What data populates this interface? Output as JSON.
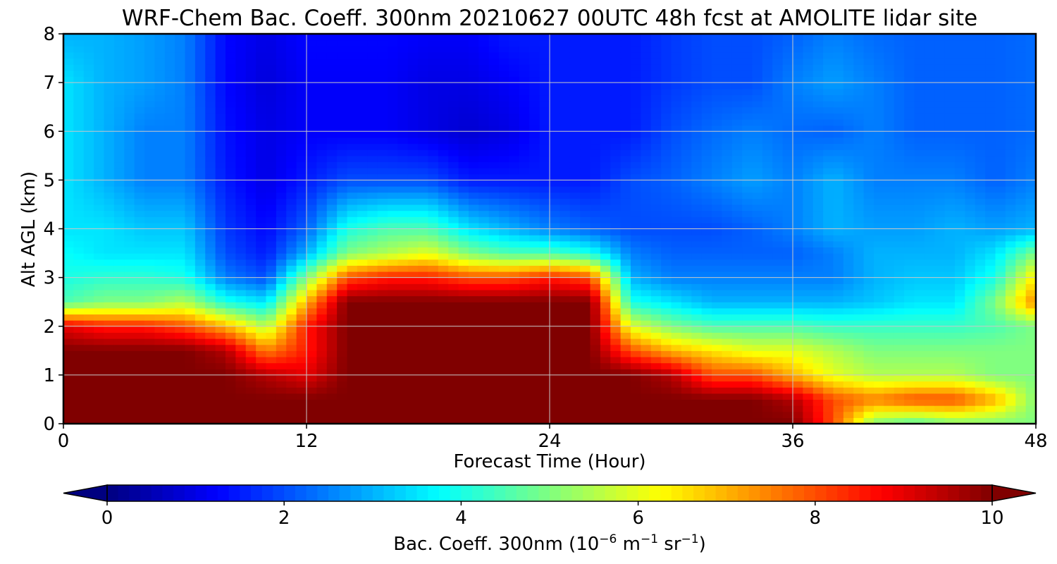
{
  "chart_data": {
    "type": "heatmap",
    "title": "WRF-Chem Bac. Coeff. 300nm  20210627 00UTC 48h fcst at AMOLITE lidar site",
    "xlabel": "Forecast Time (Hour)",
    "ylabel": "Alt AGL (km)",
    "xlim": [
      0,
      48
    ],
    "ylim": [
      0,
      8
    ],
    "xticks": [
      0,
      12,
      24,
      36,
      48
    ],
    "yticks": [
      0,
      1,
      2,
      3,
      4,
      5,
      6,
      7,
      8
    ],
    "grid": true,
    "colorbar": {
      "label_prefix": "Bac. Coeff. 300nm  (10",
      "label_exp1": "−6",
      "label_mid": " m",
      "label_exp2": "−1",
      "label_mid2": " sr",
      "label_exp3": "−1",
      "label_suffix": ")",
      "range": [
        0,
        10
      ],
      "ticks": [
        0,
        2,
        4,
        6,
        8,
        10
      ],
      "extend": "both",
      "colormap": "jet"
    },
    "x": [
      0,
      2,
      4,
      6,
      8,
      10,
      12,
      14,
      16,
      18,
      20,
      22,
      24,
      26,
      28,
      30,
      32,
      34,
      36,
      38,
      40,
      42,
      44,
      46,
      48
    ],
    "y": [
      0,
      0.5,
      1,
      1.5,
      2,
      2.5,
      3,
      3.5,
      4,
      5,
      6,
      7,
      8
    ],
    "z": [
      [
        10,
        10,
        10,
        10,
        10,
        10,
        10,
        10,
        10,
        10,
        10,
        10,
        10,
        10,
        10,
        10,
        10,
        10,
        10,
        8,
        5,
        4.5,
        5,
        5,
        5
      ],
      [
        10,
        10,
        10,
        10,
        10,
        10,
        10,
        10,
        10,
        10,
        10,
        10,
        10,
        10,
        10,
        10,
        10,
        10,
        9.5,
        8,
        7.5,
        8,
        8,
        7,
        5
      ],
      [
        10,
        10,
        10,
        10,
        10,
        9.5,
        9,
        10,
        10,
        10,
        10,
        10,
        10,
        10,
        10,
        9.5,
        8,
        8,
        7,
        6,
        5.5,
        5.5,
        5.5,
        5,
        5
      ],
      [
        10,
        10,
        10,
        10,
        9.5,
        7.5,
        8.5,
        10,
        10,
        10,
        10,
        10,
        10,
        10,
        8,
        7,
        6.5,
        6,
        6,
        5.5,
        5,
        5,
        5,
        5,
        5
      ],
      [
        9,
        8.5,
        8.5,
        8,
        7,
        5.5,
        8.5,
        10,
        10,
        10,
        10,
        10,
        10,
        10,
        6,
        5,
        4.5,
        4.5,
        4.5,
        4.3,
        4.3,
        4.3,
        4.3,
        4.5,
        5
      ],
      [
        4.5,
        5,
        5,
        5.5,
        4,
        3.5,
        7,
        10,
        10,
        10,
        10,
        10,
        10,
        10,
        4,
        3.5,
        3,
        3,
        3,
        3,
        3.2,
        3.5,
        3.5,
        5,
        7.5
      ],
      [
        4,
        4.2,
        4.2,
        4,
        2.5,
        2,
        5,
        8,
        8.5,
        8.5,
        8,
        8,
        8.5,
        8,
        3,
        2.5,
        2.5,
        2.5,
        2.5,
        2.5,
        3,
        3.2,
        3.2,
        4,
        6.5
      ],
      [
        3.8,
        3.5,
        3.5,
        3.5,
        2,
        1.5,
        3,
        5,
        5.5,
        6,
        5,
        4.5,
        4.5,
        4,
        2.5,
        2.2,
        2.2,
        2.2,
        2.2,
        2.5,
        3,
        3,
        3,
        3.5,
        5
      ],
      [
        3.5,
        3.5,
        3.2,
        3.2,
        1.8,
        1.3,
        2.2,
        4,
        4.5,
        4.5,
        3.5,
        3,
        2.5,
        2.2,
        2,
        2,
        2,
        2.2,
        2.5,
        3,
        2.8,
        2.8,
        3,
        2.8,
        3
      ],
      [
        3.5,
        3,
        2.5,
        2.5,
        1.5,
        1,
        1.5,
        2,
        2,
        2,
        1.5,
        1.5,
        1.5,
        1.5,
        2,
        2.2,
        2.5,
        2.8,
        2.5,
        3,
        2.5,
        2.5,
        2.5,
        2.2,
        2.5
      ],
      [
        3.5,
        3,
        2.5,
        2.5,
        1.4,
        1,
        1.2,
        1.2,
        1.2,
        1,
        0.8,
        1,
        1.5,
        1.5,
        1.5,
        2,
        2.3,
        2.5,
        2.3,
        2.2,
        2.5,
        2.2,
        2.2,
        2.2,
        2.3
      ],
      [
        3.5,
        3,
        2.8,
        2.5,
        1.3,
        0.9,
        1.2,
        1.2,
        1.2,
        1,
        1,
        1.2,
        1.5,
        1.5,
        1.5,
        1.8,
        2,
        2,
        2.5,
        2.8,
        2.5,
        2.2,
        2.2,
        2.2,
        2.3
      ],
      [
        3,
        3,
        2.8,
        2.5,
        1.3,
        1,
        1.3,
        1.3,
        1.3,
        1.2,
        1.2,
        1.5,
        1.5,
        1.5,
        1.5,
        1.8,
        2,
        2,
        2.2,
        2.5,
        2.3,
        2.2,
        2.2,
        2.2,
        2.3
      ]
    ]
  }
}
